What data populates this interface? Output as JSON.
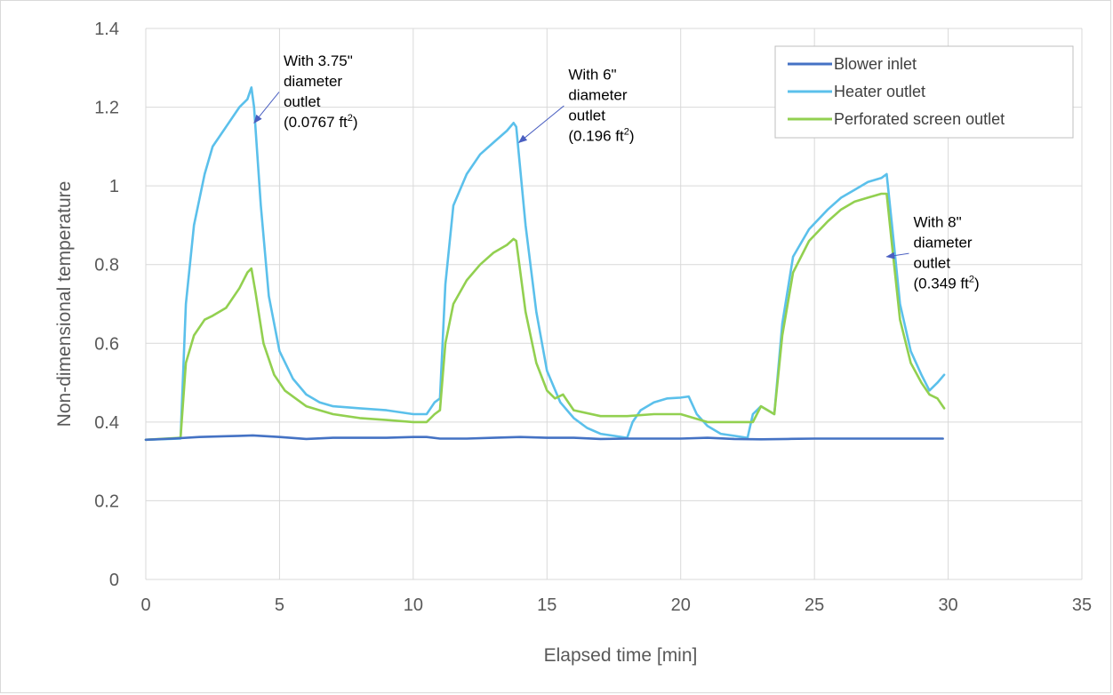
{
  "chart_data": {
    "type": "line",
    "xlabel": "Elapsed time [min]",
    "ylabel": "Non-dimensional temperature",
    "xlim": [
      0,
      35
    ],
    "ylim": [
      0,
      1.4
    ],
    "xticks": [
      "0",
      "5",
      "10",
      "15",
      "20",
      "25",
      "30",
      "35"
    ],
    "yticks": [
      "0",
      "0.2",
      "0.4",
      "0.6",
      "0.8",
      "1",
      "1.2",
      "1.4"
    ],
    "grid": true,
    "legend_position": "top-right",
    "colors": {
      "blower": "#4472c4",
      "heater": "#5bc0eb",
      "screen": "#92d050",
      "arrow": "#4a5fc1"
    },
    "series": [
      {
        "name": "Blower inlet",
        "x": [
          0,
          1,
          2,
          3,
          3.5,
          4,
          5,
          6,
          7,
          8,
          9,
          10,
          10.5,
          11,
          12,
          13,
          14,
          15,
          16,
          17,
          18,
          19,
          20,
          21,
          22,
          23,
          24,
          25,
          26,
          27,
          28,
          29,
          29.8
        ],
        "y": [
          0.355,
          0.358,
          0.362,
          0.364,
          0.365,
          0.366,
          0.362,
          0.357,
          0.36,
          0.36,
          0.36,
          0.362,
          0.362,
          0.358,
          0.358,
          0.36,
          0.362,
          0.36,
          0.36,
          0.357,
          0.358,
          0.358,
          0.358,
          0.36,
          0.357,
          0.356,
          0.357,
          0.358,
          0.358,
          0.358,
          0.358,
          0.358,
          0.358
        ]
      },
      {
        "name": "Heater outlet",
        "x": [
          0,
          1.3,
          1.5,
          1.8,
          2.2,
          2.5,
          3,
          3.5,
          3.8,
          3.95,
          4.05,
          4.3,
          4.6,
          5,
          5.5,
          6,
          6.5,
          7,
          8,
          9,
          10,
          10.5,
          10.8,
          11,
          11.2,
          11.5,
          12,
          12.5,
          13,
          13.5,
          13.75,
          13.85,
          14.2,
          14.6,
          15,
          15.5,
          16,
          16.5,
          17,
          17.5,
          18,
          18.2,
          18.5,
          19,
          19.5,
          20,
          20.3,
          20.6,
          21,
          21.5,
          22,
          22.5,
          22.7,
          23,
          23.5,
          23.8,
          24.2,
          24.8,
          25.5,
          26,
          26.5,
          27,
          27.5,
          27.7,
          27.9,
          28.2,
          28.6,
          29,
          29.3,
          29.6,
          29.85
        ],
        "y": [
          0.355,
          0.358,
          0.7,
          0.9,
          1.03,
          1.1,
          1.15,
          1.2,
          1.22,
          1.25,
          1.2,
          0.95,
          0.72,
          0.58,
          0.51,
          0.47,
          0.45,
          0.44,
          0.435,
          0.43,
          0.42,
          0.42,
          0.45,
          0.46,
          0.75,
          0.95,
          1.03,
          1.08,
          1.11,
          1.14,
          1.16,
          1.15,
          0.9,
          0.68,
          0.53,
          0.45,
          0.41,
          0.385,
          0.37,
          0.365,
          0.36,
          0.4,
          0.43,
          0.45,
          0.46,
          0.462,
          0.465,
          0.42,
          0.39,
          0.37,
          0.365,
          0.36,
          0.42,
          0.44,
          0.42,
          0.65,
          0.82,
          0.89,
          0.94,
          0.97,
          0.99,
          1.01,
          1.02,
          1.03,
          0.9,
          0.7,
          0.58,
          0.52,
          0.48,
          0.5,
          0.52
        ]
      },
      {
        "name": "Perforated screen outlet",
        "x": [
          0,
          1.3,
          1.5,
          1.8,
          2.2,
          2.5,
          3,
          3.5,
          3.8,
          3.95,
          4.1,
          4.4,
          4.8,
          5.2,
          5.6,
          6,
          6.5,
          7,
          8,
          9,
          10,
          10.5,
          10.8,
          11,
          11.2,
          11.5,
          12,
          12.5,
          13,
          13.5,
          13.75,
          13.85,
          14.2,
          14.6,
          15,
          15.3,
          15.6,
          16,
          17,
          18,
          19,
          20,
          21,
          22,
          22.7,
          23,
          23.5,
          23.8,
          24.2,
          24.8,
          25.5,
          26,
          26.5,
          27,
          27.5,
          27.7,
          27.9,
          28.2,
          28.6,
          29,
          29.3,
          29.6,
          29.85
        ],
        "y": [
          0.355,
          0.36,
          0.55,
          0.62,
          0.66,
          0.67,
          0.69,
          0.74,
          0.78,
          0.79,
          0.73,
          0.6,
          0.52,
          0.48,
          0.46,
          0.44,
          0.43,
          0.42,
          0.41,
          0.405,
          0.4,
          0.4,
          0.42,
          0.43,
          0.6,
          0.7,
          0.76,
          0.8,
          0.83,
          0.85,
          0.865,
          0.86,
          0.68,
          0.55,
          0.48,
          0.46,
          0.47,
          0.43,
          0.415,
          0.415,
          0.42,
          0.42,
          0.4,
          0.4,
          0.4,
          0.44,
          0.42,
          0.62,
          0.78,
          0.86,
          0.91,
          0.94,
          0.96,
          0.97,
          0.98,
          0.98,
          0.85,
          0.66,
          0.55,
          0.5,
          0.47,
          0.46,
          0.435
        ]
      }
    ],
    "annotations": [
      {
        "lines": [
          "With 3.75\"",
          "diameter",
          "outlet"
        ],
        "area": "(0.0767 ft",
        "sup": "2",
        "close": ")",
        "target": [
          4.05,
          1.16
        ],
        "label_at": [
          5.15,
          1.305
        ]
      },
      {
        "lines": [
          "With 6\"",
          "diameter",
          "outlet"
        ],
        "area": "(0.196 ft",
        "sup": "2",
        "close": ")",
        "target": [
          13.95,
          1.11
        ],
        "label_at": [
          15.8,
          1.27
        ]
      },
      {
        "lines": [
          "With 8\"",
          "diameter",
          "outlet"
        ],
        "area": "(0.349 ft",
        "sup": "2",
        "close": ")",
        "target": [
          27.7,
          0.82
        ],
        "label_at": [
          28.7,
          0.895
        ]
      }
    ]
  }
}
